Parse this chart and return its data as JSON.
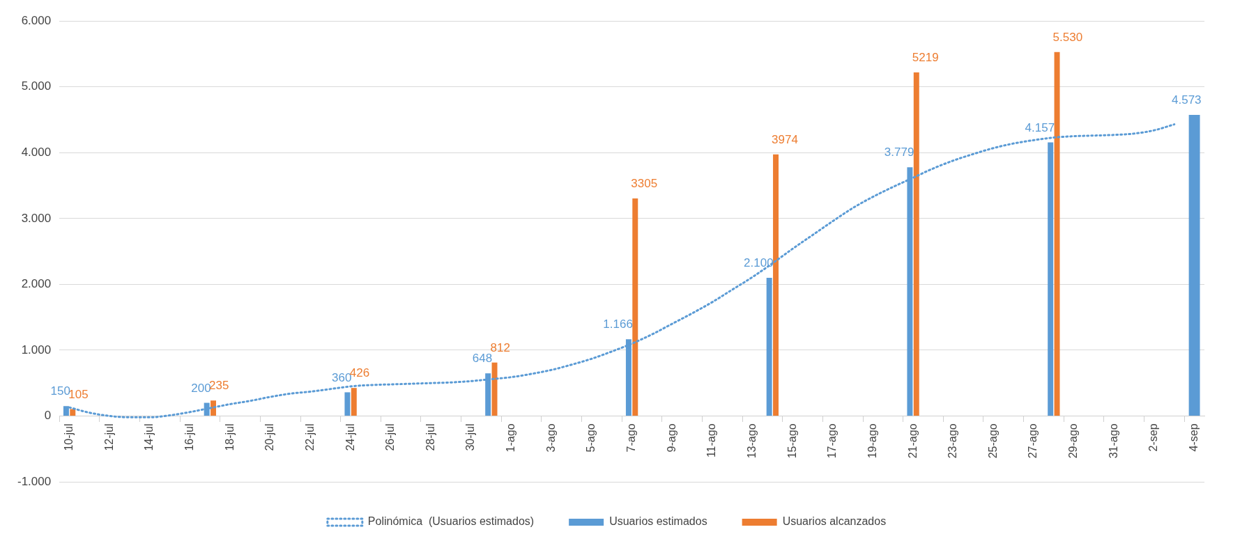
{
  "chart_data": {
    "type": "bar",
    "categories": [
      "10-jul",
      null,
      "12-jul",
      null,
      "14-jul",
      null,
      "16-jul",
      null,
      "18-jul",
      null,
      "20-jul",
      null,
      "22-jul",
      null,
      "24-jul",
      null,
      "26-jul",
      null,
      "28-jul",
      null,
      "30-jul",
      null,
      "1-ago",
      null,
      "3-ago",
      null,
      "5-ago",
      null,
      "7-ago",
      null,
      "9-ago",
      null,
      "11-ago",
      null,
      "13-ago",
      null,
      "15-ago",
      null,
      "17-ago",
      null,
      "19-ago",
      null,
      "21-ago",
      null,
      "23-ago",
      null,
      "25-ago",
      null,
      "27-ago",
      null,
      "29-ago",
      null,
      "31-ago",
      null,
      "2-sep",
      null,
      "4-sep"
    ],
    "series": [
      {
        "name": "Usuarios estimados",
        "color": "#5b9bd5",
        "values": [
          150,
          null,
          null,
          null,
          null,
          null,
          null,
          200,
          null,
          null,
          null,
          null,
          null,
          null,
          360,
          null,
          null,
          null,
          null,
          null,
          null,
          648,
          null,
          null,
          null,
          null,
          null,
          null,
          1166,
          null,
          null,
          null,
          null,
          null,
          null,
          2100,
          null,
          null,
          null,
          null,
          null,
          null,
          3779,
          null,
          null,
          null,
          null,
          null,
          null,
          4157,
          null,
          null,
          null,
          null,
          null,
          null,
          4573
        ],
        "value_labels": [
          "150",
          null,
          null,
          null,
          null,
          null,
          null,
          "200",
          null,
          null,
          null,
          null,
          null,
          null,
          "360",
          null,
          null,
          null,
          null,
          null,
          null,
          "648",
          null,
          null,
          null,
          null,
          null,
          null,
          "1.166",
          null,
          null,
          null,
          null,
          null,
          null,
          "2.100",
          null,
          null,
          null,
          null,
          null,
          null,
          "3.779",
          null,
          null,
          null,
          null,
          null,
          null,
          "4.157",
          null,
          null,
          null,
          null,
          null,
          null,
          "4.573"
        ]
      },
      {
        "name": "Usuarios alcanzados",
        "color": "#ed7d31",
        "values": [
          105,
          null,
          null,
          null,
          null,
          null,
          null,
          235,
          null,
          null,
          null,
          null,
          null,
          null,
          426,
          null,
          null,
          null,
          null,
          null,
          null,
          812,
          null,
          null,
          null,
          null,
          null,
          null,
          3305,
          null,
          null,
          null,
          null,
          null,
          null,
          3974,
          null,
          null,
          null,
          null,
          null,
          null,
          5219,
          null,
          null,
          null,
          null,
          null,
          null,
          5530,
          null,
          null,
          null,
          null,
          null,
          null,
          null
        ],
        "value_labels": [
          "105",
          null,
          null,
          null,
          null,
          null,
          null,
          "235",
          null,
          null,
          null,
          null,
          null,
          null,
          "426",
          null,
          null,
          null,
          null,
          null,
          null,
          "812",
          null,
          null,
          null,
          null,
          null,
          null,
          "3305",
          null,
          null,
          null,
          null,
          null,
          null,
          "3974",
          null,
          null,
          null,
          null,
          null,
          null,
          "5219",
          null,
          null,
          null,
          null,
          null,
          null,
          "5.530",
          null,
          null,
          null,
          null,
          null,
          null,
          null
        ]
      },
      {
        "name": "Polinómica  (Usuarios estimados)",
        "type": "line",
        "color": "#5b9bd5",
        "line_style": "dotted",
        "marker": "none",
        "values": [
          130,
          50,
          0,
          -20,
          -20,
          10,
          60,
          120,
          180,
          230,
          290,
          340,
          370,
          410,
          450,
          470,
          480,
          490,
          500,
          510,
          530,
          560,
          590,
          640,
          700,
          780,
          870,
          980,
          1100,
          1240,
          1400,
          1560,
          1730,
          1920,
          2110,
          2320,
          2540,
          2750,
          2960,
          3160,
          3330,
          3480,
          3620,
          3760,
          3880,
          3980,
          4070,
          4140,
          4190,
          4230,
          4250,
          4260,
          4270,
          4290,
          4340,
          4430,
          null
        ]
      }
    ],
    "ylim": [
      -1000,
      6000
    ],
    "yticks": [
      {
        "value": -1000,
        "label": "-1.000"
      },
      0,
      {
        "value": 1000,
        "label": "1.000"
      },
      {
        "value": 2000,
        "label": "2.000"
      },
      {
        "value": 3000,
        "label": "3.000"
      },
      {
        "value": 4000,
        "label": "4.000"
      },
      {
        "value": 5000,
        "label": "5.000"
      },
      {
        "value": 6000,
        "label": "6.000"
      }
    ],
    "grid": "y",
    "legend": "bottom"
  }
}
